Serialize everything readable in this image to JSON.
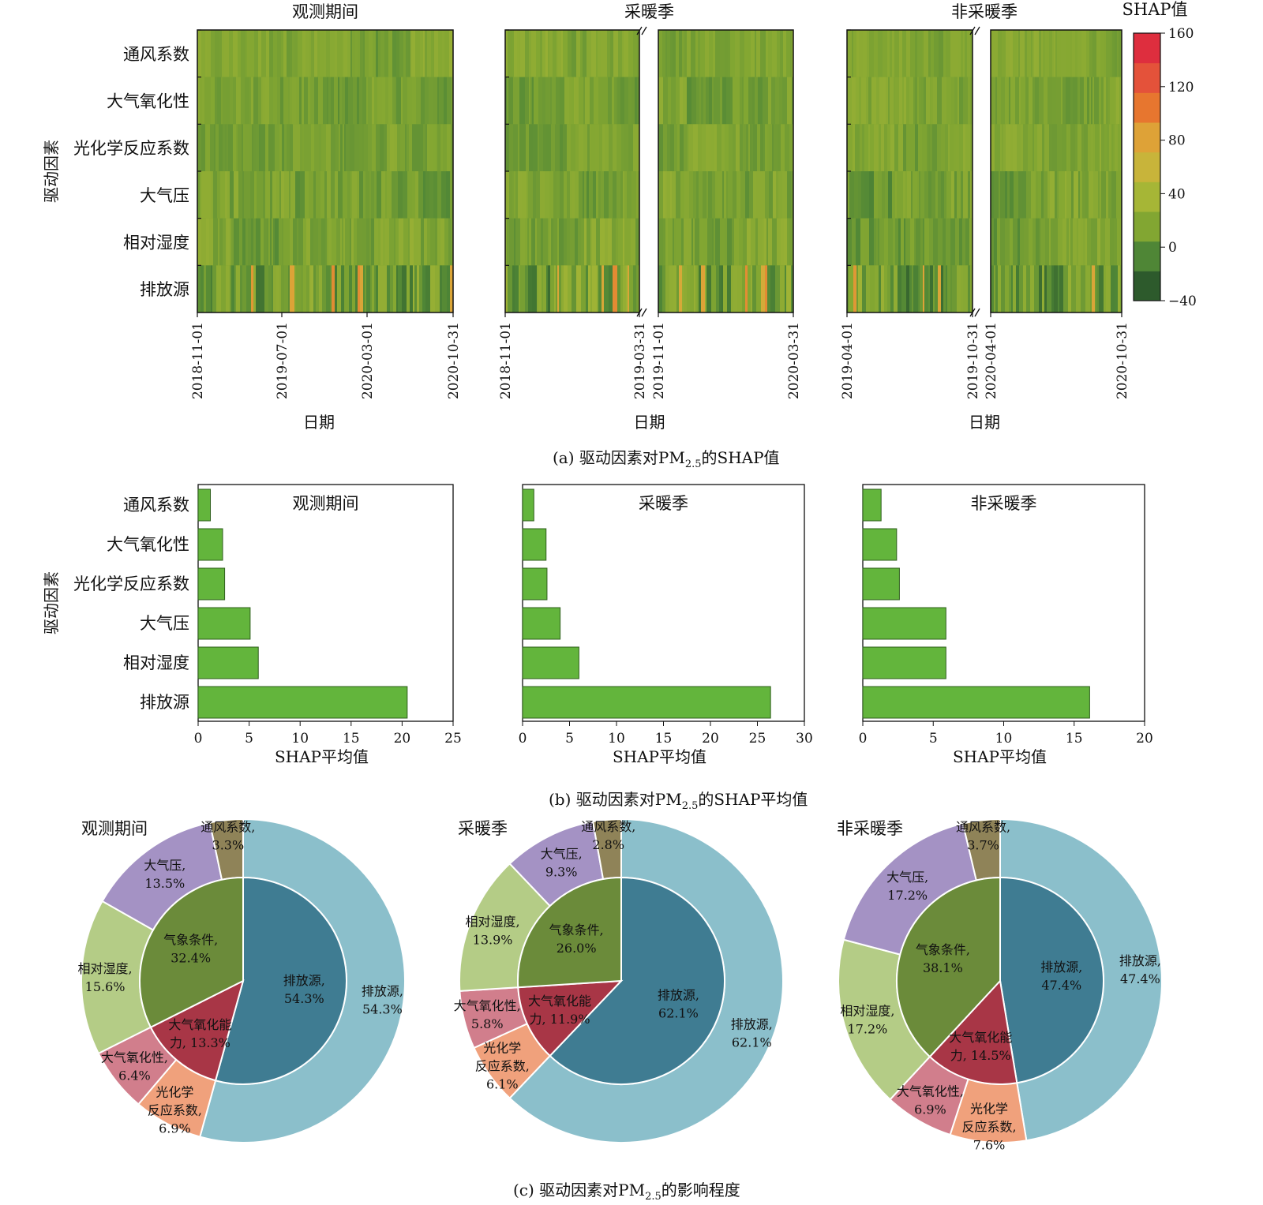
{
  "colors": {
    "bar_fill": "#63b53c",
    "bar_stroke": "#2f5f1d",
    "heat_base": "#7aa230",
    "heat_scale": [
      "#2d5a2c",
      "#4f8636",
      "#82a632",
      "#a6b636",
      "#c8b43a",
      "#dea237",
      "#e7762f",
      "#e4523a",
      "#de2e3e"
    ]
  },
  "captions": {
    "a": "(a) 驱动因素对PM",
    "a_sub": "2.5",
    "a_tail": "的SHAP值",
    "b": "(b) 驱动因素对PM",
    "b_sub": "2.5",
    "b_tail": "的SHAP平均值",
    "c": "(c) 驱动因素对PM",
    "c_sub": "2.5",
    "c_tail": "的影响程度"
  },
  "chart_data": [
    {
      "type": "heatmap",
      "panel": "a",
      "ylabel": "驱动因素",
      "xlabel": "日期",
      "factors": [
        "通风系数",
        "大气氧化性",
        "光化学反应系数",
        "大气压",
        "相对湿度",
        "排放源"
      ],
      "colorbar": {
        "label": "SHAP值",
        "ticks": [
          160,
          120,
          80,
          40,
          0,
          -40
        ],
        "range": [
          -40,
          160
        ]
      },
      "subplots": [
        {
          "title": "观测期间",
          "ticks": [
            "2018-11-01",
            "2019-07-01",
            "2020-03-01",
            "2020-10-31"
          ],
          "segments": 1
        },
        {
          "title": "采暖季",
          "ticks": [
            "2018-11-01",
            "2019-03-31",
            "2019-11-01",
            "2020-03-31"
          ],
          "segments": 2
        },
        {
          "title": "非采暖季",
          "ticks": [
            "2019-04-01",
            "2019-10-31",
            "2020-04-01",
            "2020-10-31"
          ],
          "segments": 2
        }
      ]
    },
    {
      "type": "bar",
      "panel": "b",
      "ylabel": "驱动因素",
      "xlabel": "SHAP平均值",
      "categories": [
        "通风系数",
        "大气氧化性",
        "光化学反应系数",
        "大气压",
        "相对湿度",
        "排放源"
      ],
      "subplots": [
        {
          "title": "观测期间",
          "values": [
            1.2,
            2.4,
            2.6,
            5.1,
            5.9,
            20.5
          ],
          "xlim": [
            0,
            25
          ],
          "xticks": [
            0,
            5,
            10,
            15,
            20,
            25
          ]
        },
        {
          "title": "采暖季",
          "values": [
            1.2,
            2.5,
            2.6,
            4.0,
            6.0,
            26.4
          ],
          "xlim": [
            0,
            30
          ],
          "xticks": [
            0,
            5,
            10,
            15,
            20,
            25,
            30
          ]
        },
        {
          "title": "非采暖季",
          "values": [
            1.3,
            2.4,
            2.6,
            5.9,
            5.9,
            16.1
          ],
          "xlim": [
            0,
            20
          ],
          "xticks": [
            0,
            5,
            10,
            15,
            20
          ]
        }
      ]
    },
    {
      "type": "pie",
      "panel": "c",
      "subplots": [
        {
          "title": "观测期间",
          "inner": [
            {
              "label": "排放源,",
              "pct": 54.3,
              "value_text": "54.3%",
              "color": "#3f7c92"
            },
            {
              "label": "大气氧化能",
              "label2": "力, 13.3%",
              "pct": 13.3,
              "value_text": "",
              "color": "#a83646"
            },
            {
              "label": "气象条件,",
              "pct": 32.4,
              "value_text": "32.4%",
              "color": "#6b8b3a"
            }
          ],
          "outer": [
            {
              "label": "排放源,",
              "pct": 54.3,
              "value_text": "54.3%",
              "color": "#8bbfcb"
            },
            {
              "label": "光化学",
              "label2": "反应系数,",
              "pct": 6.9,
              "value_text": "6.9%",
              "color": "#f0a17c"
            },
            {
              "label": "大气氧化性,",
              "pct": 6.4,
              "value_text": "6.4%",
              "color": "#d17e8c"
            },
            {
              "label": "相对湿度,",
              "pct": 15.6,
              "value_text": "15.6%",
              "color": "#b4cc86"
            },
            {
              "label": "大气压,",
              "pct": 13.5,
              "value_text": "13.5%",
              "color": "#a492c4"
            },
            {
              "label": "通风系数,",
              "pct": 3.3,
              "value_text": "3.3%",
              "color": "#8f8358"
            }
          ]
        },
        {
          "title": "采暖季",
          "inner": [
            {
              "label": "排放源,",
              "pct": 62.1,
              "value_text": "62.1%",
              "color": "#3f7c92"
            },
            {
              "label": "大气氧化能",
              "label2": "力, 11.9%",
              "pct": 11.9,
              "value_text": "",
              "color": "#a83646"
            },
            {
              "label": "气象条件,",
              "pct": 26.0,
              "value_text": "26.0%",
              "color": "#6b8b3a"
            }
          ],
          "outer": [
            {
              "label": "排放源,",
              "pct": 62.1,
              "value_text": "62.1%",
              "color": "#8bbfcb"
            },
            {
              "label": "光化学",
              "label2": "反应系数,",
              "pct": 6.1,
              "value_text": "6.1%",
              "color": "#f0a17c"
            },
            {
              "label": "大气氧化性,",
              "pct": 5.8,
              "value_text": "5.8%",
              "color": "#d17e8c"
            },
            {
              "label": "相对湿度,",
              "pct": 13.9,
              "value_text": "13.9%",
              "color": "#b4cc86"
            },
            {
              "label": "大气压,",
              "pct": 9.3,
              "value_text": "9.3%",
              "color": "#a492c4"
            },
            {
              "label": "通风系数,",
              "pct": 2.8,
              "value_text": "2.8%",
              "color": "#8f8358"
            }
          ]
        },
        {
          "title": "非采暖季",
          "inner": [
            {
              "label": "排放源,",
              "pct": 47.4,
              "value_text": "47.4%",
              "color": "#3f7c92"
            },
            {
              "label": "大气氧化能",
              "label2": "力, 14.5%",
              "pct": 14.5,
              "value_text": "",
              "color": "#a83646"
            },
            {
              "label": "气象条件,",
              "pct": 38.1,
              "value_text": "38.1%",
              "color": "#6b8b3a"
            }
          ],
          "outer": [
            {
              "label": "排放源,",
              "pct": 47.4,
              "value_text": "47.4%",
              "color": "#8bbfcb"
            },
            {
              "label": "光化学",
              "label2": "反应系数,",
              "pct": 7.6,
              "value_text": "7.6%",
              "color": "#f0a17c"
            },
            {
              "label": "大气氧化性,",
              "pct": 6.9,
              "value_text": "6.9%",
              "color": "#d17e8c"
            },
            {
              "label": "相对湿度,",
              "pct": 17.2,
              "value_text": "17.2%",
              "color": "#b4cc86"
            },
            {
              "label": "大气压,",
              "pct": 17.2,
              "value_text": "17.2%",
              "color": "#a492c4"
            },
            {
              "label": "通风系数,",
              "pct": 3.7,
              "value_text": "3.7%",
              "color": "#8f8358"
            }
          ]
        }
      ]
    }
  ]
}
